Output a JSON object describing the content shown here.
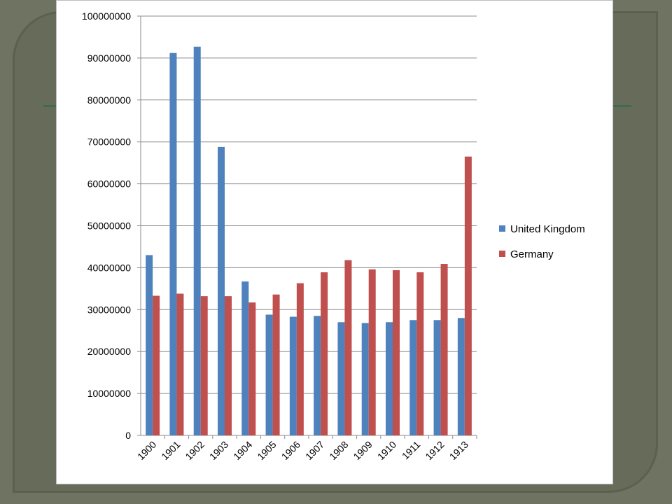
{
  "chart_data": {
    "type": "bar",
    "title": "",
    "xlabel": "",
    "ylabel": "",
    "ylim": [
      0,
      100000000
    ],
    "yticks": [
      "0",
      "10000000",
      "20000000",
      "30000000",
      "40000000",
      "50000000",
      "60000000",
      "70000000",
      "80000000",
      "90000000",
      "100000000"
    ],
    "categories": [
      "1900",
      "1901",
      "1902",
      "1903",
      "1904",
      "1905",
      "1906",
      "1907",
      "1908",
      "1909",
      "1910",
      "1911",
      "1912",
      "1913"
    ],
    "series": [
      {
        "name": "United Kingdom",
        "color": "#4f81bd",
        "values": [
          43000000,
          91200000,
          92700000,
          68800000,
          36700000,
          28800000,
          28300000,
          28500000,
          27000000,
          26800000,
          27000000,
          27500000,
          27500000,
          28000000
        ]
      },
      {
        "name": "Germany",
        "color": "#c0504d",
        "values": [
          33300000,
          33800000,
          33200000,
          33200000,
          31700000,
          33600000,
          36300000,
          38900000,
          41800000,
          39600000,
          39400000,
          38900000,
          40900000,
          66500000
        ]
      }
    ],
    "grid": true,
    "legend_position": "right"
  }
}
